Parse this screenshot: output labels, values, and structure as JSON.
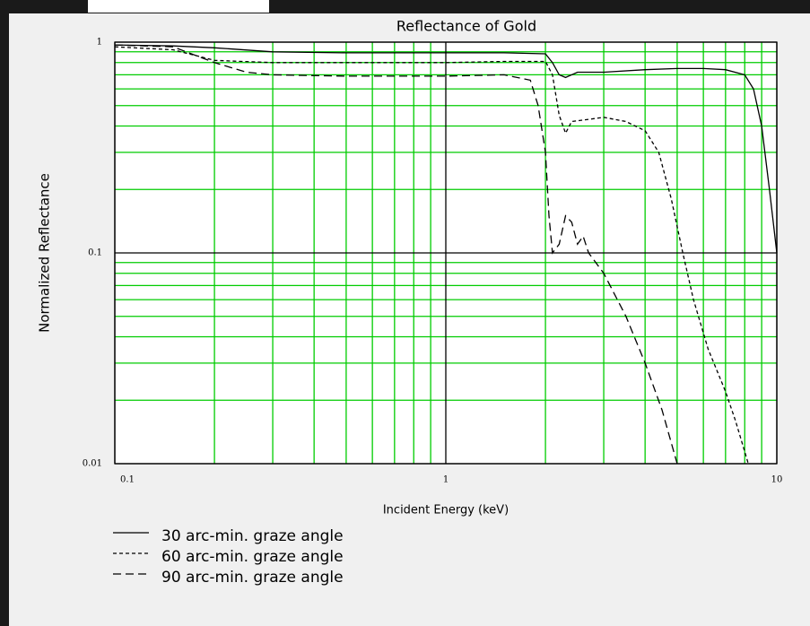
{
  "chart_data": {
    "type": "line",
    "title": "Reflectance of Gold",
    "x_label": "Incident Energy (keV)",
    "y_label": "Normalized Reflectance",
    "xlim": [
      0.1,
      10
    ],
    "ylim": [
      0.01,
      1
    ],
    "xticks": [
      0.1,
      1,
      10
    ],
    "yticks": [
      0.01,
      0.1,
      1
    ],
    "log_x": true,
    "log_y": true,
    "grid": true,
    "grid_color": "#00cc00",
    "series": [
      {
        "name": "30 arc-min. graze angle",
        "color": "#000000",
        "line_style": "solid",
        "x": [
          0.1,
          0.15,
          0.2,
          0.3,
          0.5,
          0.7,
          1,
          1.5,
          2.0,
          2.1,
          2.2,
          2.3,
          2.5,
          3,
          4,
          5,
          6,
          7,
          8,
          8.5,
          9,
          9.5,
          10
        ],
        "values": [
          0.97,
          0.96,
          0.94,
          0.9,
          0.89,
          0.89,
          0.89,
          0.89,
          0.88,
          0.8,
          0.7,
          0.68,
          0.72,
          0.72,
          0.74,
          0.75,
          0.75,
          0.74,
          0.7,
          0.6,
          0.4,
          0.2,
          0.1
        ]
      },
      {
        "name": "60 arc-min. graze angle",
        "color": "#000000",
        "line_style": "dashed",
        "x": [
          0.1,
          0.15,
          0.2,
          0.3,
          0.5,
          1,
          1.5,
          2.0,
          2.1,
          2.2,
          2.3,
          2.4,
          2.7,
          3,
          3.5,
          4,
          4.4,
          4.8,
          5.2,
          5.6,
          6.2,
          7,
          7.5,
          8.2
        ],
        "values": [
          0.95,
          0.92,
          0.82,
          0.8,
          0.8,
          0.8,
          0.81,
          0.81,
          0.7,
          0.45,
          0.37,
          0.42,
          0.43,
          0.44,
          0.42,
          0.38,
          0.3,
          0.18,
          0.1,
          0.06,
          0.035,
          0.022,
          0.016,
          0.01
        ]
      },
      {
        "name": "90 arc-min. graze angle",
        "color": "#000000",
        "line_style": "long-dashed",
        "x": [
          0.1,
          0.15,
          0.2,
          0.25,
          0.3,
          0.5,
          1,
          1.5,
          1.8,
          1.9,
          2.0,
          2.05,
          2.1,
          2.2,
          2.3,
          2.4,
          2.5,
          2.6,
          2.7,
          3,
          3.5,
          4,
          4.5,
          5
        ],
        "values": [
          0.97,
          0.95,
          0.8,
          0.72,
          0.7,
          0.69,
          0.69,
          0.7,
          0.66,
          0.5,
          0.3,
          0.15,
          0.1,
          0.11,
          0.15,
          0.14,
          0.11,
          0.12,
          0.1,
          0.08,
          0.05,
          0.03,
          0.018,
          0.01
        ]
      }
    ]
  }
}
